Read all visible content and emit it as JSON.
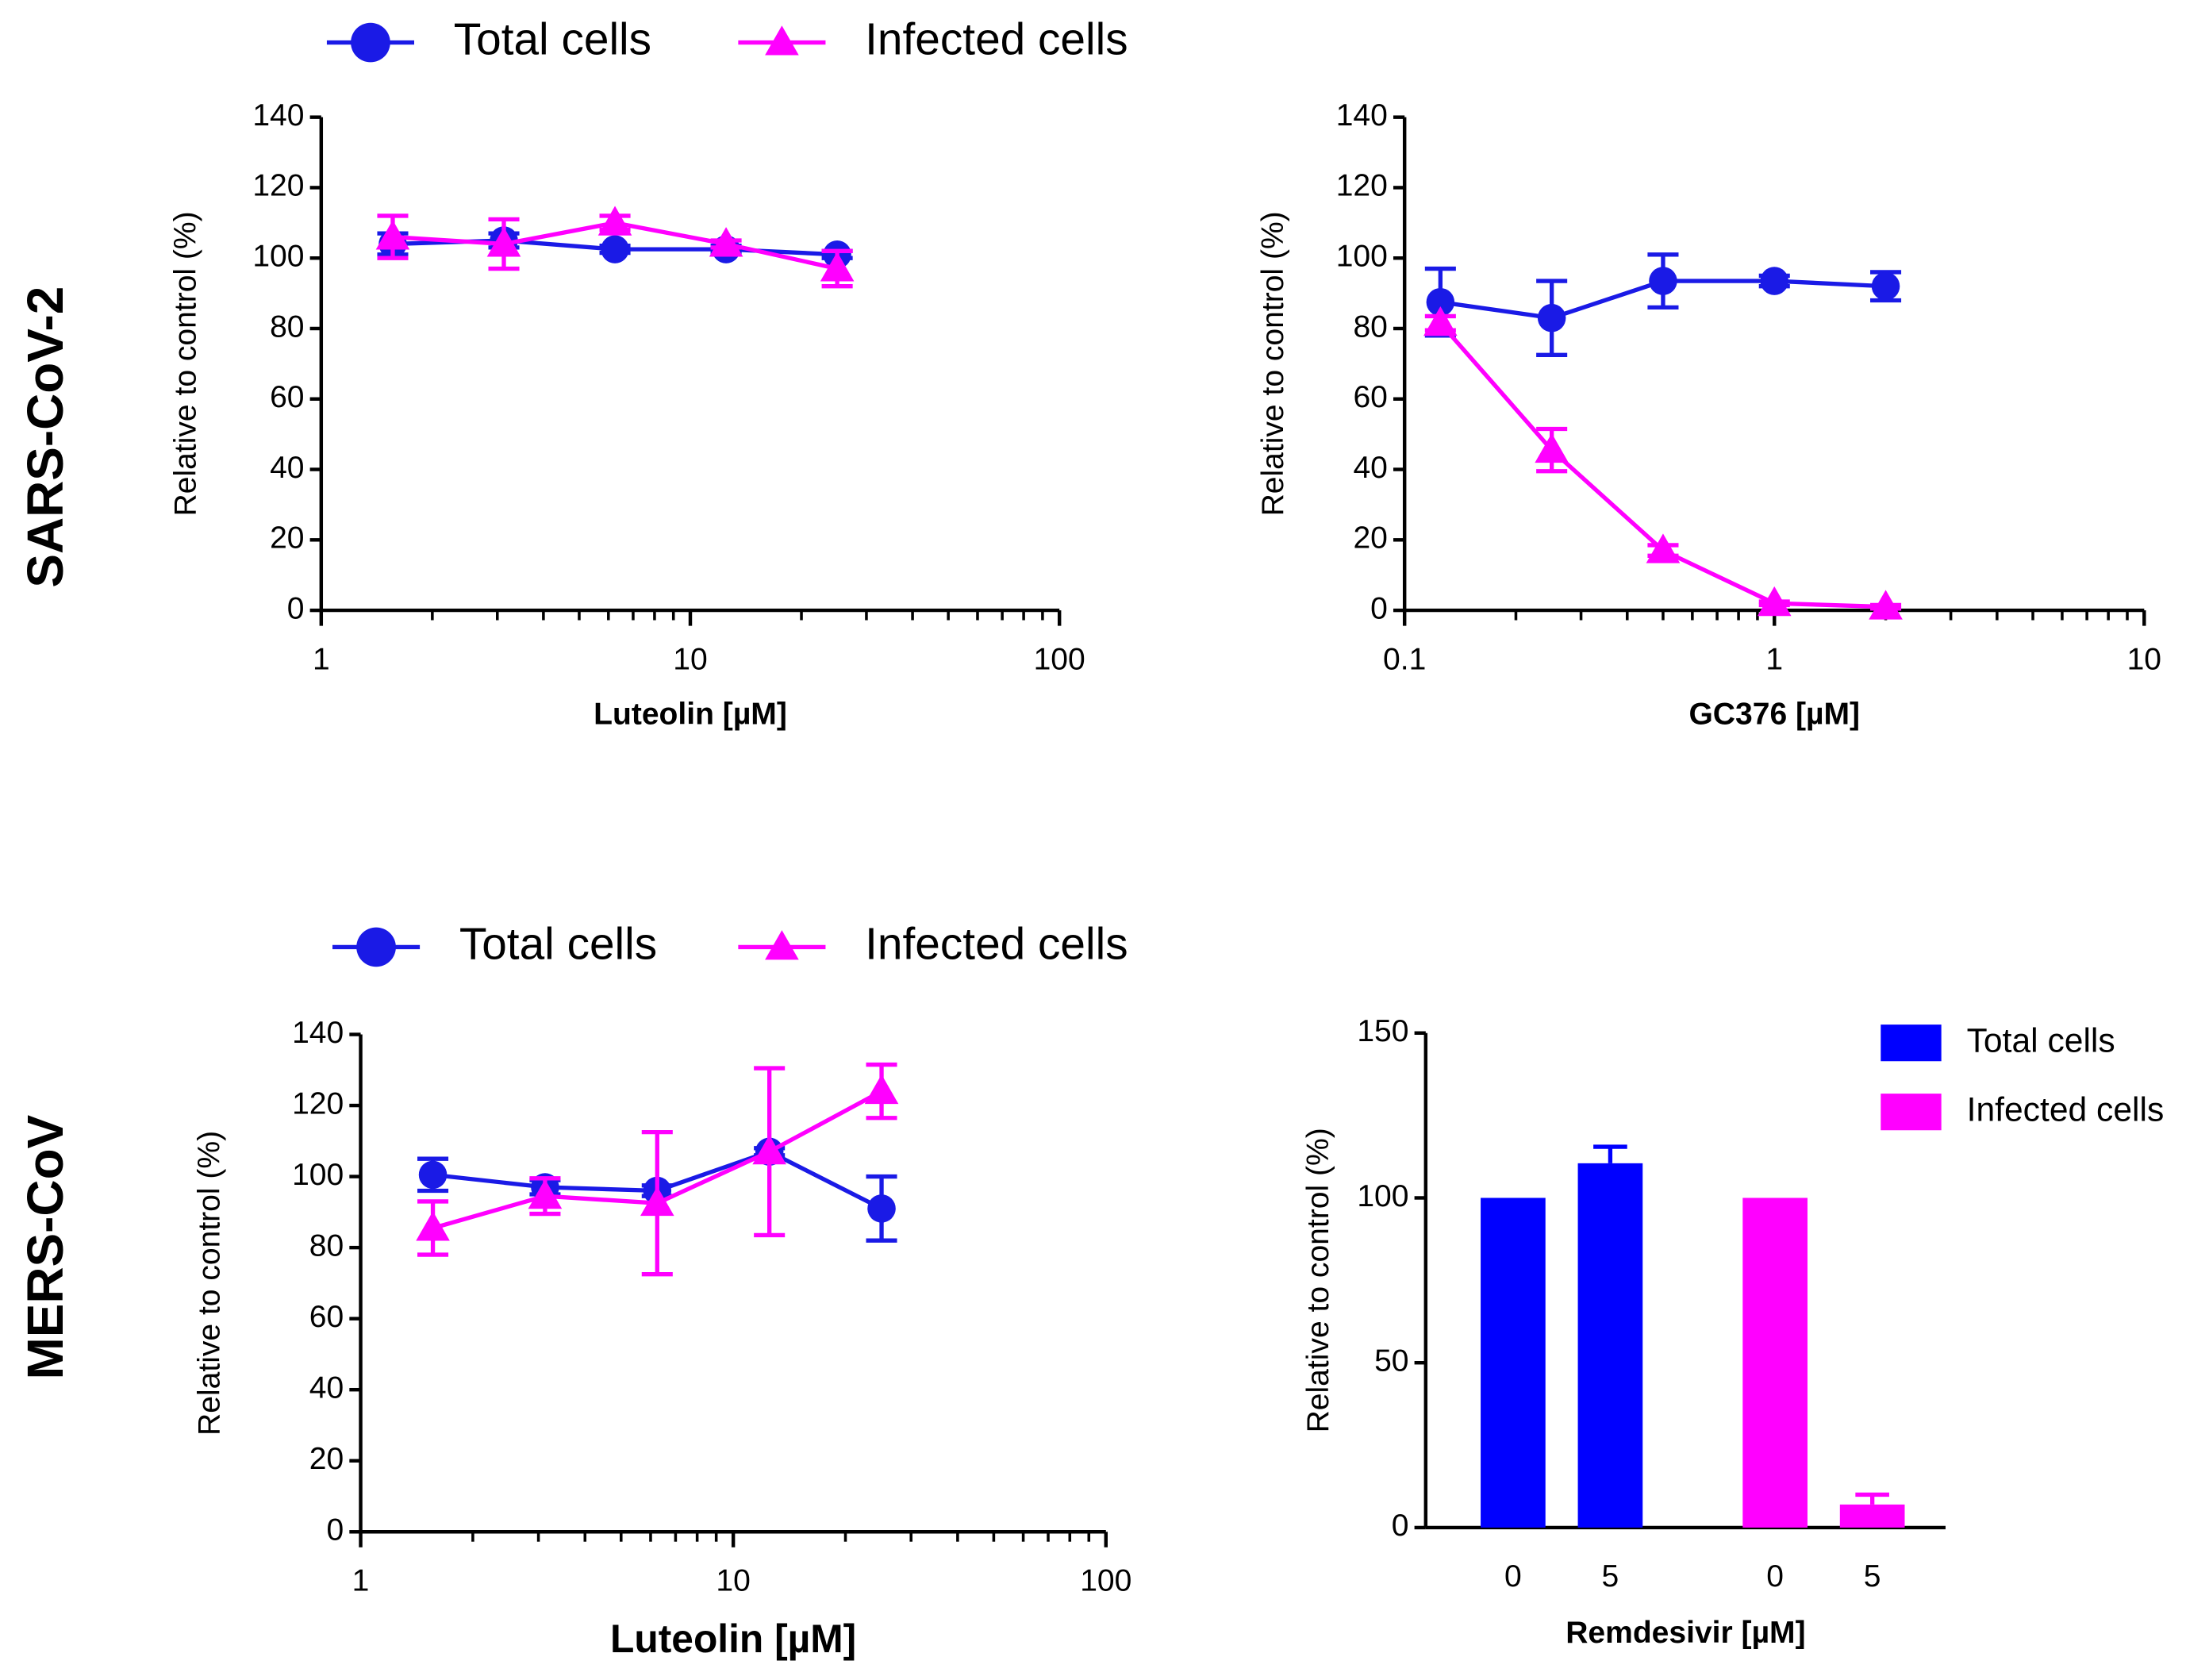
{
  "row_labels": [
    "SARS-CoV-2",
    "MERS-CoV"
  ],
  "chart_data": [
    {
      "type": "line",
      "xscale": "log",
      "xlabel": "Luteolin [µM]",
      "ylabel": "Relative to control (%)",
      "legend": "top",
      "xlim": [
        1,
        100
      ],
      "xticks": [
        1,
        10,
        100
      ],
      "xminor_ticks": [
        2,
        3,
        4,
        5,
        6,
        7,
        8,
        9,
        20,
        30,
        40,
        50,
        60,
        70,
        80,
        90
      ],
      "ylim": [
        0,
        140
      ],
      "yticks": [
        0,
        20,
        40,
        60,
        80,
        100,
        120,
        140
      ],
      "x": [
        1.5625,
        3.125,
        6.25,
        12.5,
        25
      ],
      "series": [
        {
          "name": "Total cells",
          "color": "#1a1ae6",
          "marker": "circle",
          "values": [
            104,
            105,
            102.5,
            102.5,
            101
          ],
          "errors": [
            3,
            2,
            1,
            1,
            1
          ]
        },
        {
          "name": "Infected cells",
          "color": "#ff00ff",
          "marker": "triangle",
          "values": [
            106,
            104,
            110,
            104,
            97
          ],
          "errors": [
            6,
            7,
            2,
            1,
            5
          ]
        }
      ]
    },
    {
      "type": "line",
      "xscale": "log",
      "xlabel": "GC376 [µM]",
      "ylabel": "Relative to control (%)",
      "xlim": [
        0.1,
        10
      ],
      "xticks": [
        0.1,
        1,
        10
      ],
      "xminor_ticks": [
        0.2,
        0.3,
        0.4,
        0.5,
        0.6,
        0.7,
        0.8,
        0.9,
        2,
        3,
        4,
        5,
        6,
        7,
        8,
        9
      ],
      "ylim": [
        0,
        140
      ],
      "yticks": [
        0,
        20,
        40,
        60,
        80,
        100,
        120,
        140
      ],
      "x": [
        0.125,
        0.25,
        0.5,
        1,
        2
      ],
      "series": [
        {
          "color": "#1a1ae6",
          "marker": "circle",
          "values": [
            87.5,
            83,
            93.5,
            93.5,
            92
          ],
          "errors": [
            9.5,
            10.5,
            7.5,
            1.5,
            4
          ]
        },
        {
          "color": "#ff00ff",
          "marker": "triangle",
          "values": [
            81.5,
            45.5,
            17,
            2,
            1
          ],
          "errors": [
            2,
            6,
            1.5,
            0.5,
            0.5
          ]
        }
      ]
    },
    {
      "type": "line",
      "xscale": "log",
      "xlabel": "Luteolin [µM]",
      "ylabel": "Relative to control (%)",
      "legend": "top",
      "xlim": [
        1,
        100
      ],
      "xticks": [
        1,
        10,
        100
      ],
      "xminor_ticks": [
        2,
        3,
        4,
        5,
        6,
        7,
        8,
        9,
        20,
        30,
        40,
        50,
        60,
        70,
        80,
        90
      ],
      "ylim": [
        0,
        140
      ],
      "yticks": [
        0,
        20,
        40,
        60,
        80,
        100,
        120,
        140
      ],
      "x": [
        1.5625,
        3.125,
        6.25,
        12.5,
        25
      ],
      "series": [
        {
          "name": "Total cells",
          "color": "#1a1ae6",
          "marker": "circle",
          "values": [
            100.5,
            97,
            96,
            107,
            91
          ],
          "errors": [
            4.5,
            2,
            1.5,
            1,
            9
          ]
        },
        {
          "name": "Infected cells",
          "color": "#ff00ff",
          "marker": "triangle",
          "values": [
            85.5,
            94.5,
            92.5,
            107,
            124
          ],
          "errors": [
            7.5,
            5,
            20,
            23.5,
            7.5
          ]
        }
      ]
    },
    {
      "type": "bar",
      "xlabel": "Remdesivir [µM]",
      "ylabel": "Relative to control (%)",
      "legend": "right",
      "categories": [
        "0",
        "5",
        "0",
        "5"
      ],
      "ylim": [
        0,
        150
      ],
      "yticks": [
        0,
        50,
        100,
        150
      ],
      "series": [
        {
          "name": "Total cells",
          "color": "#0000ff",
          "values": [
            100,
            110.5,
            null,
            null
          ],
          "errors": [
            null,
            5,
            null,
            null
          ]
        },
        {
          "name": "Infected cells",
          "color": "#ff00ff",
          "values": [
            null,
            null,
            100,
            7
          ],
          "errors": [
            null,
            null,
            null,
            3
          ]
        }
      ]
    }
  ]
}
